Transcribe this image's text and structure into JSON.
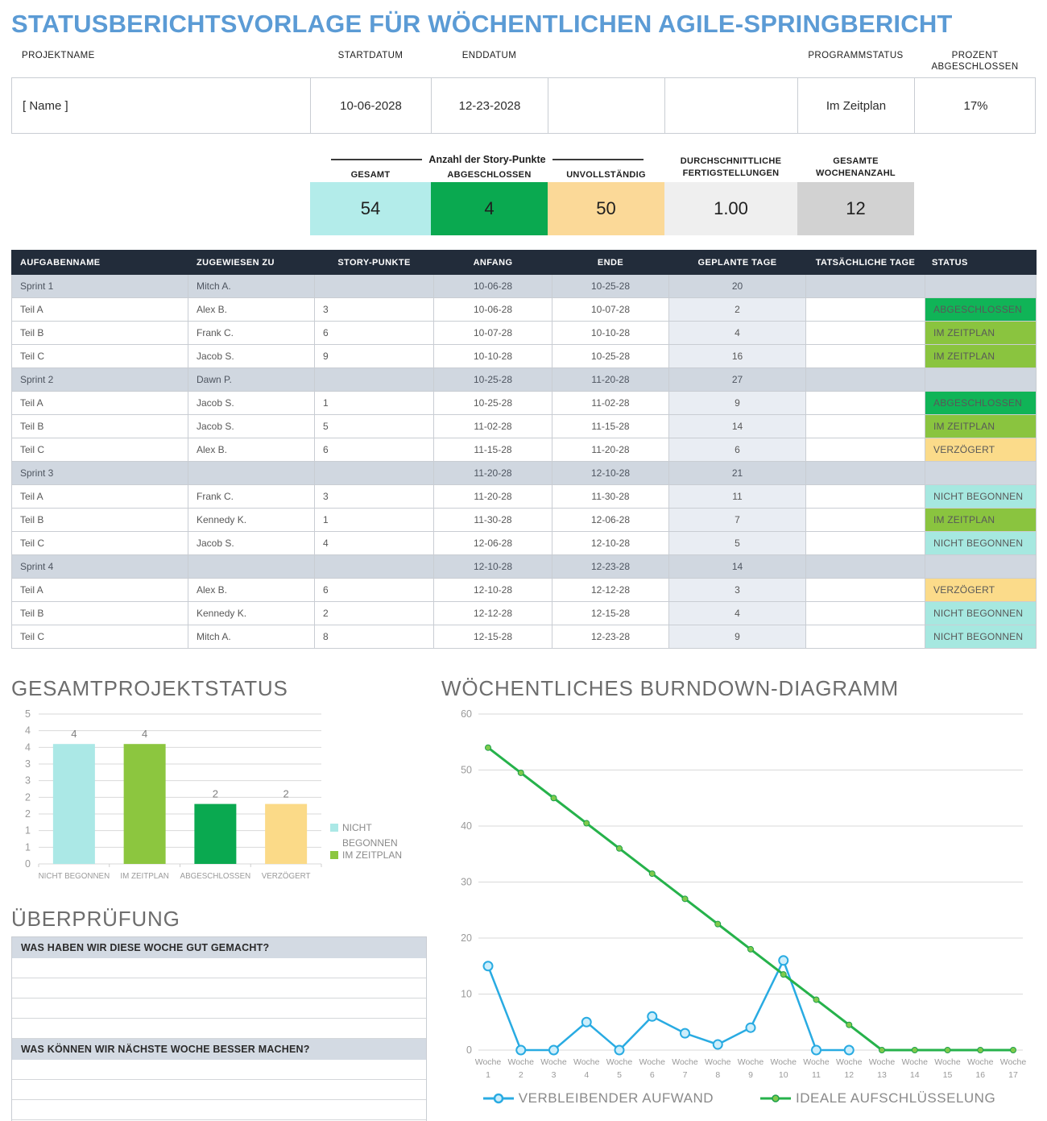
{
  "title": "STATUSBERICHTSVORLAGE FÜR WÖCHENTLICHEN AGILE-SPRINGBERICHT",
  "project_info": {
    "labels": {
      "name": "PROJEKTNAME",
      "start": "STARTDATUM",
      "end": "ENDDATUM",
      "status": "PROGRAMMSTATUS",
      "percent": "PROZENT ABGESCHLOSSEN"
    },
    "values": {
      "name": "[ Name ]",
      "start": "10-06-2028",
      "end": "12-23-2028",
      "status": "Im Zeitplan",
      "percent": "17%"
    }
  },
  "story_points": {
    "group_title": "Anzahl der Story-Punkte",
    "cards": [
      {
        "label": "GESAMT",
        "value": "54",
        "color": "#b3ecea"
      },
      {
        "label": "ABGESCHLOSSEN",
        "value": "4",
        "color": "#0aa950"
      },
      {
        "label": "UNVOLLSTÄNDIG",
        "value": "50",
        "color": "#fbd998"
      },
      {
        "label_line1": "DURCHSCHNITTLICHE",
        "label_line2": "FERTIGSTELLUNGEN",
        "value": "1.00",
        "color": "#efefef"
      },
      {
        "label_line1": "GESAMTE",
        "label_line2": "WOCHENANZAHL",
        "value": "12",
        "color": "#d2d2d2"
      }
    ]
  },
  "task_table": {
    "columns": [
      "AUFGABENNAME",
      "ZUGEWIESEN ZU",
      "STORY-PUNKTE",
      "ANFANG",
      "ENDE",
      "GEPLANTE TAGE",
      "TATSÄCHLICHE TAGE",
      "STATUS"
    ],
    "status_colors": {
      "ABGESCHLOSSEN": "#10b457",
      "IM ZEITPLAN": "#8ac43f",
      "VERZÖGERT": "#fbdb8a",
      "NICHT BEGONNEN": "#a6e8e0"
    },
    "rows": [
      {
        "type": "sprint",
        "name": "Sprint 1",
        "assignee": "Mitch A.",
        "points": "",
        "start": "10-06-28",
        "end": "10-25-28",
        "planned": "20",
        "actual": "",
        "status": ""
      },
      {
        "type": "task",
        "name": "Teil A",
        "assignee": "Alex B.",
        "points": "3",
        "start": "10-06-28",
        "end": "10-07-28",
        "planned": "2",
        "actual": "",
        "status": "ABGESCHLOSSEN"
      },
      {
        "type": "task",
        "name": "Teil B",
        "assignee": "Frank C.",
        "points": "6",
        "start": "10-07-28",
        "end": "10-10-28",
        "planned": "4",
        "actual": "",
        "status": "IM ZEITPLAN"
      },
      {
        "type": "task",
        "name": "Teil C",
        "assignee": "Jacob S.",
        "points": "9",
        "start": "10-10-28",
        "end": "10-25-28",
        "planned": "16",
        "actual": "",
        "status": "IM ZEITPLAN"
      },
      {
        "type": "sprint",
        "name": "Sprint 2",
        "assignee": "Dawn P.",
        "points": "",
        "start": "10-25-28",
        "end": "11-20-28",
        "planned": "27",
        "actual": "",
        "status": ""
      },
      {
        "type": "task",
        "name": "Teil A",
        "assignee": "Jacob S.",
        "points": "1",
        "start": "10-25-28",
        "end": "11-02-28",
        "planned": "9",
        "actual": "",
        "status": "ABGESCHLOSSEN"
      },
      {
        "type": "task",
        "name": "Teil B",
        "assignee": "Jacob S.",
        "points": "5",
        "start": "11-02-28",
        "end": "11-15-28",
        "planned": "14",
        "actual": "",
        "status": "IM ZEITPLAN"
      },
      {
        "type": "task",
        "name": "Teil C",
        "assignee": "Alex B.",
        "points": "6",
        "start": "11-15-28",
        "end": "11-20-28",
        "planned": "6",
        "actual": "",
        "status": "VERZÖGERT"
      },
      {
        "type": "sprint",
        "name": "Sprint 3",
        "assignee": "",
        "points": "",
        "start": "11-20-28",
        "end": "12-10-28",
        "planned": "21",
        "actual": "",
        "status": ""
      },
      {
        "type": "task",
        "name": "Teil A",
        "assignee": "Frank C.",
        "points": "3",
        "start": "11-20-28",
        "end": "11-30-28",
        "planned": "11",
        "actual": "",
        "status": "NICHT BEGONNEN"
      },
      {
        "type": "task",
        "name": "Teil B",
        "assignee": "Kennedy K.",
        "points": "1",
        "start": "11-30-28",
        "end": "12-06-28",
        "planned": "7",
        "actual": "",
        "status": "IM ZEITPLAN"
      },
      {
        "type": "task",
        "name": "Teil C",
        "assignee": "Jacob S.",
        "points": "4",
        "start": "12-06-28",
        "end": "12-10-28",
        "planned": "5",
        "actual": "",
        "status": "NICHT BEGONNEN"
      },
      {
        "type": "sprint",
        "name": "Sprint 4",
        "assignee": "",
        "points": "",
        "start": "12-10-28",
        "end": "12-23-28",
        "planned": "14",
        "actual": "",
        "status": ""
      },
      {
        "type": "task",
        "name": "Teil A",
        "assignee": "Alex B.",
        "points": "6",
        "start": "12-10-28",
        "end": "12-12-28",
        "planned": "3",
        "actual": "",
        "status": "VERZÖGERT"
      },
      {
        "type": "task",
        "name": "Teil B",
        "assignee": "Kennedy K.",
        "points": "2",
        "start": "12-12-28",
        "end": "12-15-28",
        "planned": "4",
        "actual": "",
        "status": "NICHT BEGONNEN"
      },
      {
        "type": "task",
        "name": "Teil C",
        "assignee": "Mitch A.",
        "points": "8",
        "start": "12-15-28",
        "end": "12-23-28",
        "planned": "9",
        "actual": "",
        "status": "NICHT BEGONNEN"
      }
    ]
  },
  "review": {
    "title": "ÜBERPRÜFUNG",
    "sections": [
      {
        "heading": "WAS HABEN WIR DIESE WOCHE GUT GEMACHT?"
      },
      {
        "heading": "WAS KÖNNEN WIR NÄCHSTE WOCHE BESSER MACHEN?"
      }
    ]
  },
  "chart_data": [
    {
      "type": "bar",
      "title": "GESAMTPROJEKTSTATUS",
      "categories": [
        "NICHT BEGONNEN",
        "IM ZEITPLAN",
        "ABGESCHLOSSEN",
        "VERZÖGERT"
      ],
      "values": [
        4,
        4,
        2,
        2
      ],
      "bar_colors": [
        "#abe8e6",
        "#8cc63f",
        "#0aa950",
        "#fbda88"
      ],
      "data_labels": [
        "4",
        "4",
        "2",
        "2"
      ],
      "xlabel": "",
      "ylabel": "",
      "ylim": [
        0,
        5
      ],
      "ytick_labels": [
        "5",
        "4",
        "4",
        "3",
        "3",
        "2",
        "2",
        "1",
        "1",
        "0"
      ],
      "grid": true,
      "legend_position": "right",
      "legend": [
        {
          "label": "NICHT BEGONNEN",
          "color": "#abe8e6"
        },
        {
          "label": "IM ZEITPLAN",
          "color": "#8cc63f"
        }
      ]
    },
    {
      "type": "line",
      "title": "WÖCHENTLICHES BURNDOWN-DIAGRAMM",
      "x_labels": [
        "Woche 1",
        "Woche 2",
        "Woche 3",
        "Woche 4",
        "Woche 5",
        "Woche 6",
        "Woche 7",
        "Woche 8",
        "Woche 9",
        "Woche 10",
        "Woche 11",
        "Woche 12",
        "Woche 13",
        "Woche 14",
        "Woche 15",
        "Woche 16",
        "Woche 17"
      ],
      "series": [
        {
          "name": "VERBLEIBENDER AUFWAND",
          "color": "#29abe2",
          "values": [
            15,
            0,
            0,
            5,
            0,
            6,
            3,
            1,
            4,
            16,
            0,
            0
          ]
        },
        {
          "name": "IDEALE AUFSCHLÜSSELUNG",
          "color": "#26b24b",
          "values": [
            54,
            49.5,
            45,
            40.5,
            36,
            31.5,
            27,
            22.5,
            18,
            13.5,
            9,
            4.5,
            0,
            0,
            0,
            0,
            0
          ]
        }
      ],
      "ylim": [
        0,
        60
      ],
      "yticks": [
        0,
        10,
        20,
        30,
        40,
        50,
        60
      ],
      "grid": true,
      "legend_position": "bottom"
    }
  ]
}
